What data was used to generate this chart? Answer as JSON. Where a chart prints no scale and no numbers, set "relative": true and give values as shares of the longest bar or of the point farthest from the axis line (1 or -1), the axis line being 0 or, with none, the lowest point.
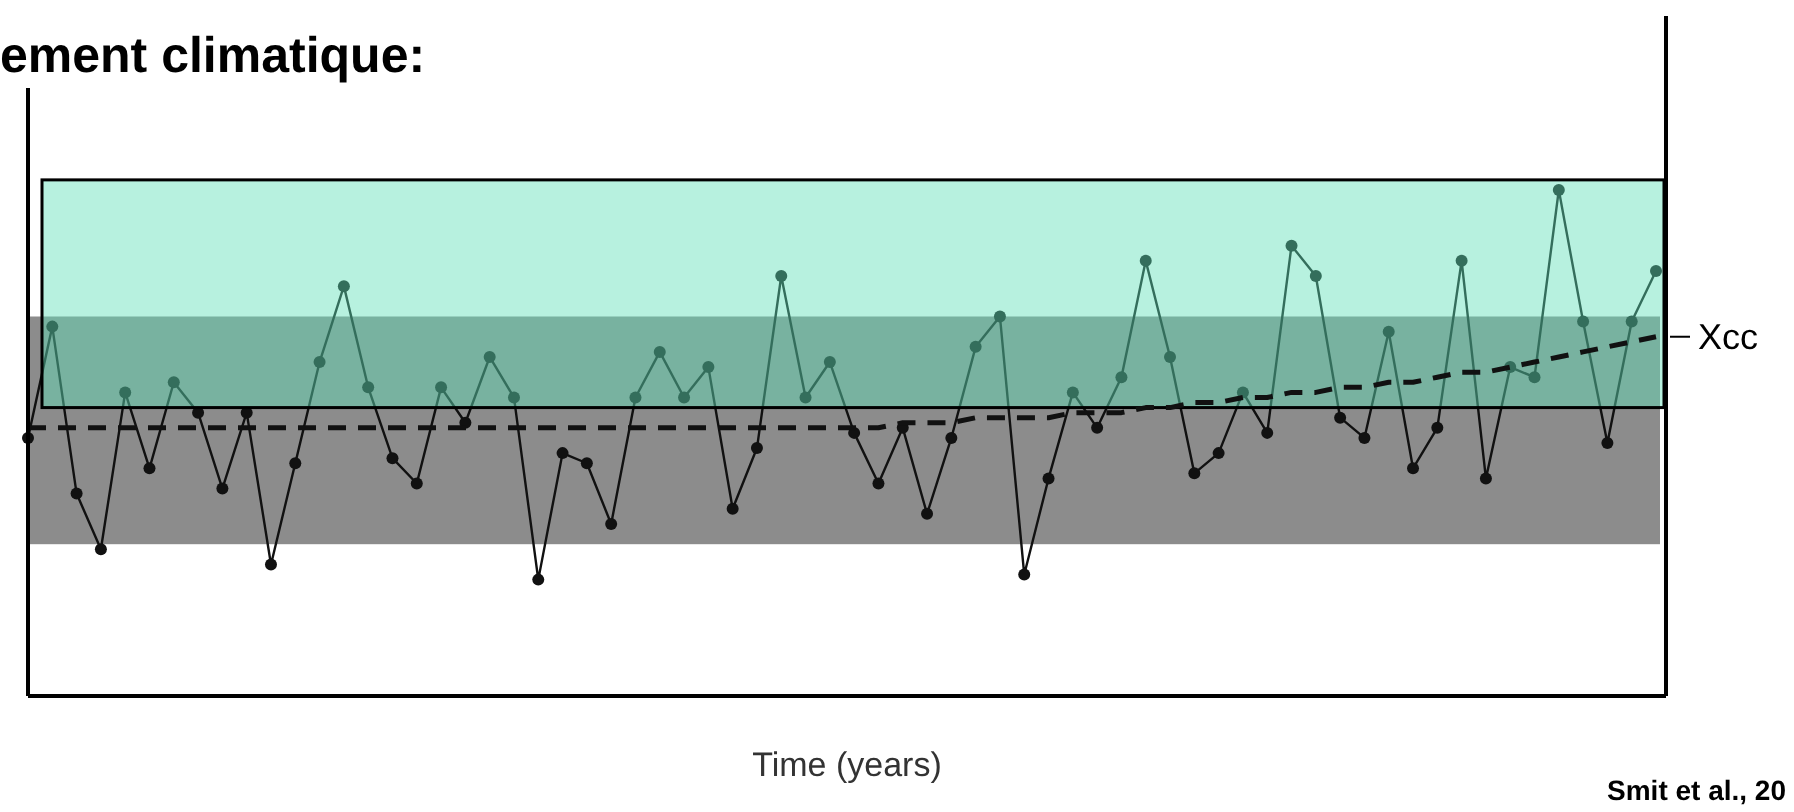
{
  "chart_data": {
    "type": "line",
    "relative": true,
    "title": "ement climatique:",
    "xlabel": "Time (years)",
    "annotations": [
      "Smit et al., 20"
    ],
    "categories": [
      null,
      null,
      null,
      null,
      null,
      null,
      null,
      null,
      null,
      null,
      null,
      null,
      null,
      null,
      null,
      null,
      null,
      null,
      null,
      null,
      null,
      null,
      null,
      null,
      null,
      null,
      null,
      null,
      null,
      null,
      null,
      null,
      null,
      null,
      null,
      null,
      null,
      null,
      null,
      null,
      null,
      null,
      null,
      null,
      null,
      null,
      null,
      null,
      null,
      null,
      null,
      null,
      null,
      null,
      null,
      null,
      null,
      null,
      null,
      null,
      null,
      null,
      null,
      null,
      null,
      null,
      null,
      null
    ],
    "series": [
      {
        "color": "#111111",
        "marker": "circle",
        "line_style": "solid",
        "values": [
          0.51,
          0.73,
          0.4,
          0.29,
          0.6,
          0.45,
          0.62,
          0.56,
          0.41,
          0.56,
          0.26,
          0.46,
          0.66,
          0.81,
          0.61,
          0.47,
          0.42,
          0.61,
          0.54,
          0.67,
          0.59,
          0.23,
          0.48,
          0.46,
          0.34,
          0.59,
          0.68,
          0.59,
          0.65,
          0.37,
          0.49,
          0.83,
          0.59,
          0.66,
          0.52,
          0.42,
          0.53,
          0.36,
          0.51,
          0.69,
          0.75,
          0.24,
          0.43,
          0.6,
          0.53,
          0.63,
          0.86,
          0.67,
          0.44,
          0.48,
          0.6,
          0.52,
          0.89,
          0.83,
          0.55,
          0.51,
          0.72,
          0.45,
          0.53,
          0.86,
          0.43,
          0.65,
          0.63,
          1.0,
          0.74,
          0.5,
          0.74,
          0.84
        ]
      },
      {
        "name": "Xcc",
        "color": "#111111",
        "marker": "none",
        "line_style": "dashed",
        "values": [
          0.53,
          0.53,
          0.53,
          0.53,
          0.53,
          0.53,
          0.53,
          0.53,
          0.53,
          0.53,
          0.53,
          0.53,
          0.53,
          0.53,
          0.53,
          0.53,
          0.53,
          0.53,
          0.53,
          0.53,
          0.53,
          0.53,
          0.53,
          0.53,
          0.53,
          0.53,
          0.53,
          0.53,
          0.53,
          0.53,
          0.53,
          0.53,
          0.53,
          0.53,
          0.53,
          0.53,
          0.54,
          0.54,
          0.54,
          0.55,
          0.55,
          0.55,
          0.55,
          0.56,
          0.56,
          0.56,
          0.57,
          0.57,
          0.58,
          0.58,
          0.59,
          0.59,
          0.6,
          0.6,
          0.61,
          0.61,
          0.62,
          0.62,
          0.63,
          0.64,
          0.64,
          0.65,
          0.66,
          0.67,
          0.68,
          0.69,
          0.7,
          0.71
        ]
      }
    ],
    "bands": [
      {
        "axis": "y",
        "from": 0.3,
        "to": 0.75,
        "color": "#8c8c8c"
      },
      {
        "axis": "y",
        "from": 0.57,
        "to": 1.02,
        "color": "#5fe0b8"
      }
    ]
  }
}
